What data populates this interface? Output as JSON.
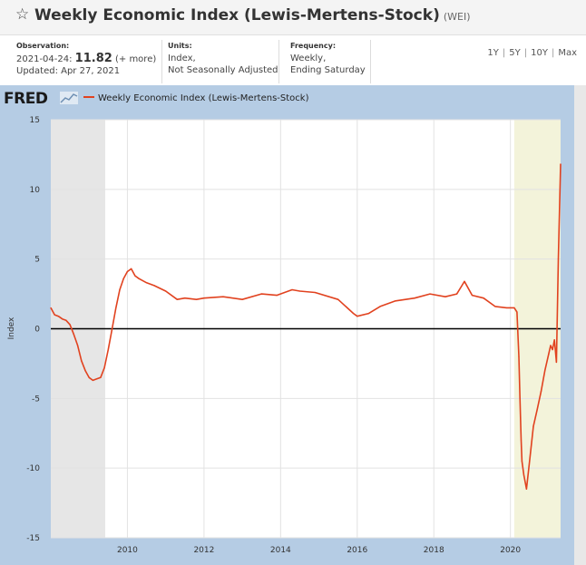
{
  "header": {
    "title": "Weekly Economic Index (Lewis-Mertens-Stock)",
    "series_id": "(WEI)"
  },
  "observation": {
    "label": "Observation:",
    "date": "2021-04-24:",
    "value": "11.82",
    "more": "(+ more)",
    "updated": "Updated: Apr 27, 2021"
  },
  "units": {
    "label": "Units:",
    "line1": "Index,",
    "line2": "Not Seasonally Adjusted"
  },
  "frequency": {
    "label": "Frequency:",
    "line1": "Weekly,",
    "line2": "Ending Saturday"
  },
  "range_links": [
    "1Y",
    "5Y",
    "10Y",
    "Max"
  ],
  "logo": {
    "text": "FRED"
  },
  "colors": {
    "series": "#e1421f",
    "frame": "#b5cce4",
    "recession": "#e6e6e6",
    "highlight": "#f3f3da"
  },
  "chart_data": {
    "type": "line",
    "title": "",
    "xlabel": "",
    "ylabel": "Index",
    "xlim": [
      2008.0,
      2021.31
    ],
    "ylim": [
      -15,
      15
    ],
    "yticks": [
      15,
      10,
      5,
      0,
      -5,
      -10,
      -15
    ],
    "xticks": [
      "2010",
      "2012",
      "2014",
      "2016",
      "2018",
      "2020"
    ],
    "grid": true,
    "legend": "top-left",
    "shaded_periods": [
      {
        "start": 2008.0,
        "end": 2009.42,
        "color": "#e6e6e6"
      },
      {
        "start": 2020.1,
        "end": 2021.31,
        "color": "#f3f3da"
      }
    ],
    "series": [
      {
        "name": "Weekly Economic Index (Lewis-Mertens-Stock)",
        "x": [
          2008.0,
          2008.1,
          2008.2,
          2008.3,
          2008.4,
          2008.5,
          2008.6,
          2008.7,
          2008.8,
          2008.9,
          2009.0,
          2009.1,
          2009.2,
          2009.3,
          2009.4,
          2009.5,
          2009.6,
          2009.7,
          2009.8,
          2009.9,
          2010.0,
          2010.1,
          2010.2,
          2010.3,
          2010.5,
          2010.7,
          2011.0,
          2011.3,
          2011.5,
          2011.8,
          2012.0,
          2012.5,
          2013.0,
          2013.5,
          2013.9,
          2014.3,
          2014.5,
          2014.9,
          2015.5,
          2015.9,
          2016.0,
          2016.3,
          2016.6,
          2017.0,
          2017.5,
          2017.9,
          2018.3,
          2018.6,
          2018.8,
          2019.0,
          2019.3,
          2019.6,
          2019.9,
          2020.0,
          2020.1,
          2020.17,
          2020.22,
          2020.25,
          2020.28,
          2020.3,
          2020.35,
          2020.42,
          2020.5,
          2020.6,
          2020.7,
          2020.8,
          2020.9,
          2021.0,
          2021.05,
          2021.1,
          2021.15,
          2021.2,
          2021.25,
          2021.31
        ],
        "values": [
          1.5,
          1.0,
          0.9,
          0.7,
          0.6,
          0.3,
          -0.4,
          -1.2,
          -2.3,
          -3.0,
          -3.5,
          -3.7,
          -3.6,
          -3.5,
          -2.8,
          -1.5,
          0.0,
          1.5,
          2.8,
          3.6,
          4.1,
          4.3,
          3.8,
          3.6,
          3.3,
          3.1,
          2.7,
          2.1,
          2.2,
          2.1,
          2.2,
          2.3,
          2.1,
          2.5,
          2.4,
          2.8,
          2.7,
          2.6,
          2.1,
          1.1,
          0.9,
          1.1,
          1.6,
          2.0,
          2.2,
          2.5,
          2.3,
          2.5,
          3.4,
          2.4,
          2.2,
          1.6,
          1.5,
          1.5,
          1.5,
          1.2,
          -2.0,
          -5.0,
          -8.0,
          -9.5,
          -10.5,
          -11.5,
          -9.5,
          -7.0,
          -5.8,
          -4.5,
          -3.0,
          -1.8,
          -1.2,
          -1.5,
          -0.8,
          -2.4,
          5.0,
          11.82
        ]
      }
    ]
  }
}
